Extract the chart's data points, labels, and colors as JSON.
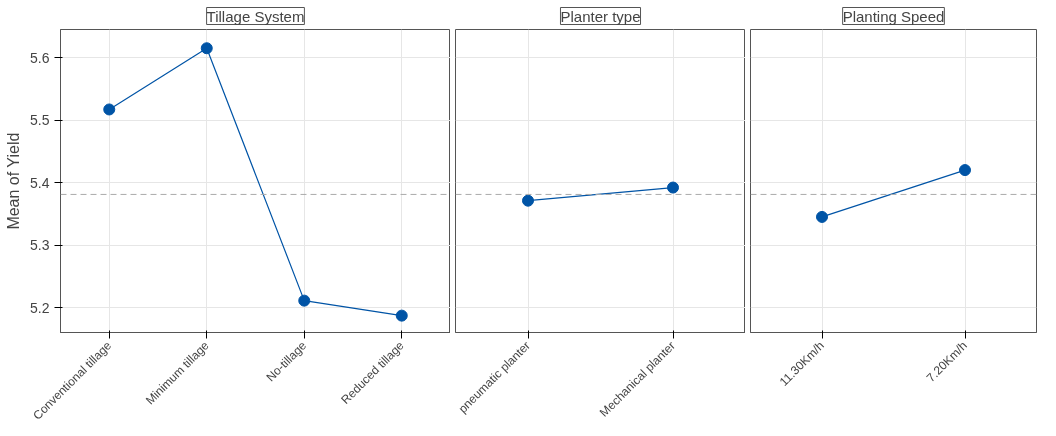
{
  "chart_data": [
    {
      "type": "line",
      "title": "Tillage System",
      "ylabel": "Mean of Yield",
      "categories": [
        "Conventional tillage",
        "Minimum tillage",
        "No-tillage",
        "Reduced tillage"
      ],
      "values": [
        5.517,
        5.615,
        5.211,
        5.187
      ],
      "color": "#0054a6",
      "marker": "circle",
      "ylim": [
        5.16,
        5.645
      ],
      "yticks": [
        5.2,
        5.3,
        5.4,
        5.5,
        5.6
      ],
      "grid": true,
      "ref_lines": [
        {
          "axis": "y",
          "value": 5.381,
          "color": "#aaaaaa",
          "line_style": "dashed"
        }
      ]
    },
    {
      "type": "line",
      "title": "Planter type",
      "categories": [
        "pneumatic planter",
        "Mechanical planter"
      ],
      "values": [
        5.371,
        5.392
      ],
      "color": "#0054a6",
      "marker": "circle",
      "ylim": [
        5.16,
        5.645
      ],
      "yticks": [
        5.2,
        5.3,
        5.4,
        5.5,
        5.6
      ],
      "grid": true,
      "tick_labels": "x",
      "ref_lines": [
        {
          "axis": "y",
          "value": 5.381,
          "color": "#aaaaaa",
          "line_style": "dashed"
        }
      ]
    },
    {
      "type": "line",
      "title": "Planting Speed",
      "categories": [
        "11.30Km/h",
        "7.20Km/h"
      ],
      "values": [
        5.345,
        5.42
      ],
      "color": "#0054a6",
      "marker": "circle",
      "ylim": [
        5.16,
        5.645
      ],
      "yticks": [
        5.2,
        5.3,
        5.4,
        5.5,
        5.6
      ],
      "grid": true,
      "tick_labels": "x",
      "ref_lines": [
        {
          "axis": "y",
          "value": 5.381,
          "color": "#aaaaaa",
          "line_style": "dashed"
        }
      ]
    }
  ]
}
